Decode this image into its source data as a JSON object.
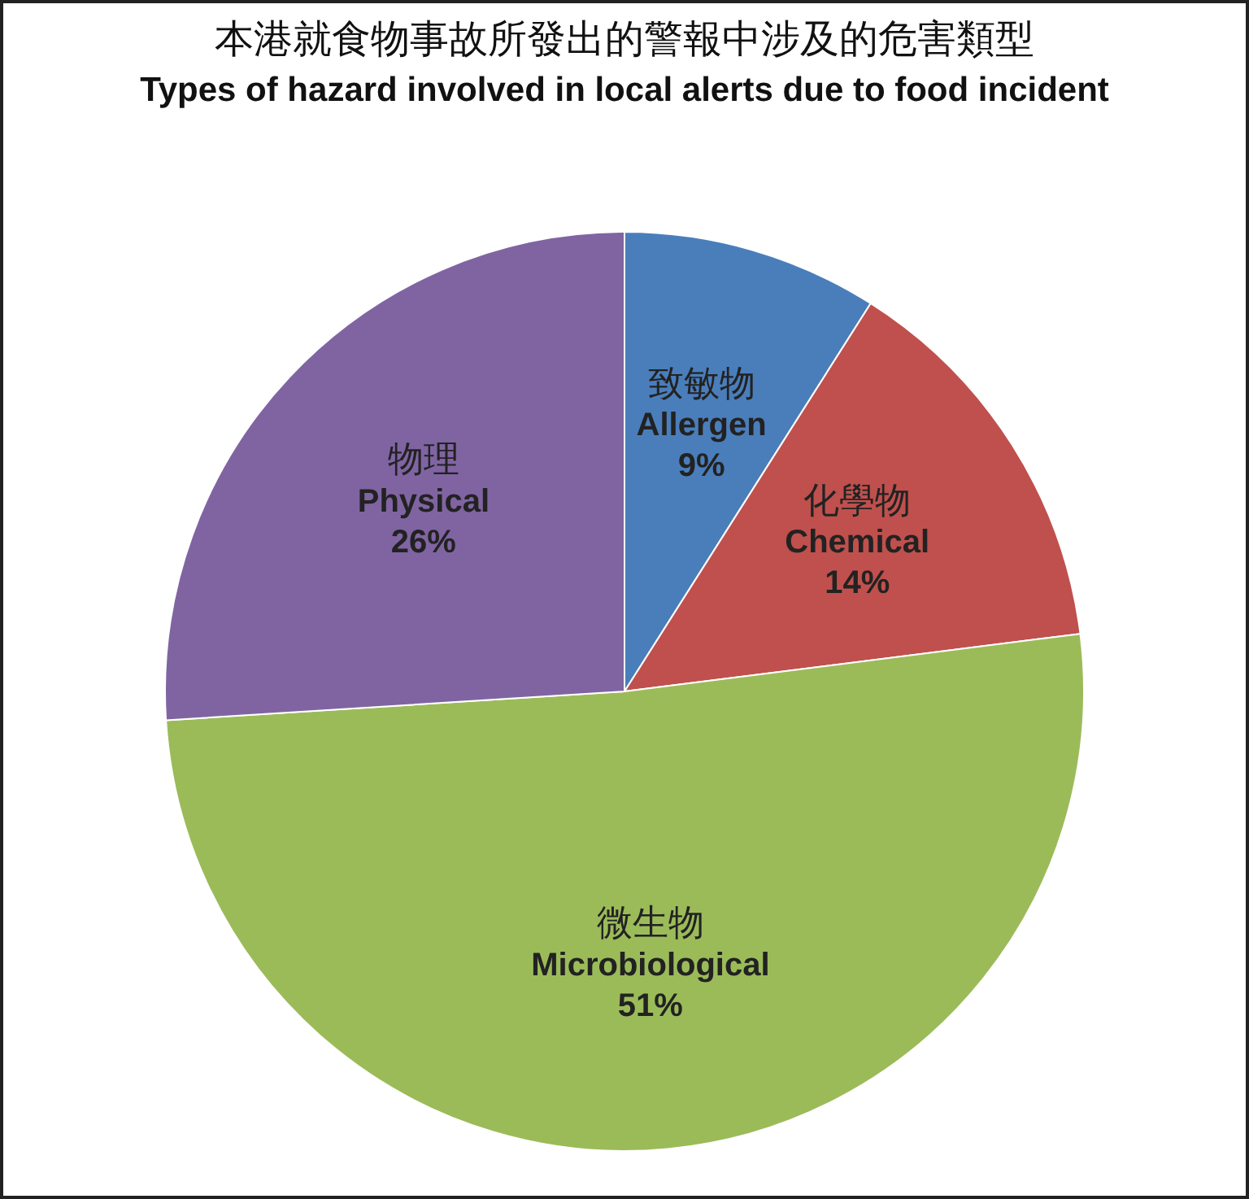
{
  "chart_data": {
    "type": "pie",
    "title": "本港就食物事故所發出的警報中涉及的危害類型",
    "subtitle": "Types of hazard involved in local alerts due to food incident",
    "categories": [
      "致敏物\nAllergen",
      "化學物\nChemical",
      "微生物\nMicrobiological",
      "物理\nPhysical"
    ],
    "values": [
      9,
      14,
      51,
      26
    ],
    "colors": [
      "#4a7ebb",
      "#c0504d",
      "#9bbb59",
      "#8064a2"
    ],
    "value_labels": [
      "9%",
      "14%",
      "51%",
      "26%"
    ],
    "legend": false
  }
}
